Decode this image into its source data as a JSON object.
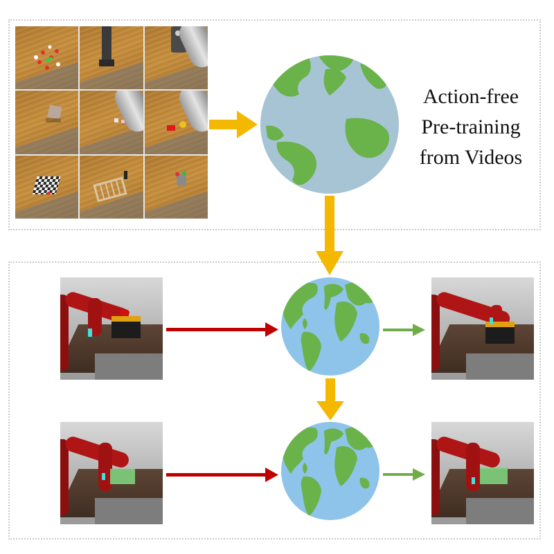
{
  "title_lines": [
    "Action-free",
    "Pre-training",
    "from Videos"
  ],
  "colors": {
    "yellow_arrow": "#f5b800",
    "red_arrow": "#c00000",
    "green_arrow": "#70ad47",
    "ocean_top": "#a7c4d4",
    "ocean_bottom": "#8ec3ea",
    "land": "#6ab24a",
    "panel_border": "#c9c9c9"
  },
  "icons": [
    "globe-icon",
    "robot-arm-scene",
    "video-frame-grid"
  ]
}
